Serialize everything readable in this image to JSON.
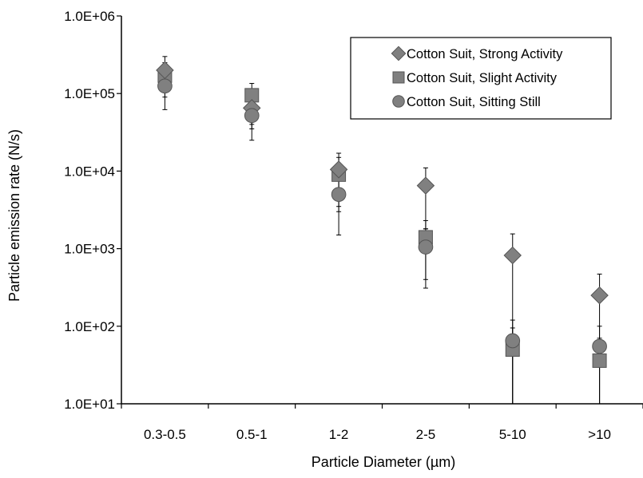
{
  "chart_data": {
    "type": "scatter",
    "title": "",
    "xlabel": "Particle Diameter (µm)",
    "ylabel": "Particle emission rate (N/s)",
    "y_scale": "log",
    "ylim": [
      10,
      1000000
    ],
    "y_tick_labels": [
      "1.0E+01",
      "1.0E+02",
      "1.0E+03",
      "1.0E+04",
      "1.0E+05",
      "1.0E+06"
    ],
    "categories": [
      "0.3-0.5",
      "0.5-1",
      "1-2",
      "2-5",
      "5-10",
      ">10"
    ],
    "grid": false,
    "legend_position": "top-right",
    "error_bars": true,
    "series": [
      {
        "name": "Cotton Suit,  Strong Activity",
        "marker": "diamond",
        "color": "#808080",
        "values": [
          200000,
          65000,
          10500,
          6500,
          820,
          250
        ],
        "error_low": [
          110000,
          35000,
          3500,
          1800,
          10,
          10
        ],
        "error_high": [
          300000,
          115000,
          17000,
          11000,
          1550,
          470
        ]
      },
      {
        "name": "Cotton Suit,  Slight Activity",
        "marker": "square",
        "color": "#808080",
        "values": [
          170000,
          95000,
          9000,
          1400,
          50,
          36
        ],
        "error_low": [
          90000,
          40000,
          3000,
          400,
          10,
          10
        ],
        "error_high": [
          250000,
          135000,
          15000,
          2300,
          95,
          70
        ]
      },
      {
        "name": "Cotton Suit,  Sitting Still",
        "marker": "circle",
        "color": "#808080",
        "values": [
          125000,
          52000,
          5000,
          1050,
          65,
          55
        ],
        "error_low": [
          62000,
          25000,
          1500,
          310,
          10,
          10
        ],
        "error_high": [
          190000,
          80000,
          8500,
          1800,
          120,
          100
        ]
      }
    ]
  }
}
